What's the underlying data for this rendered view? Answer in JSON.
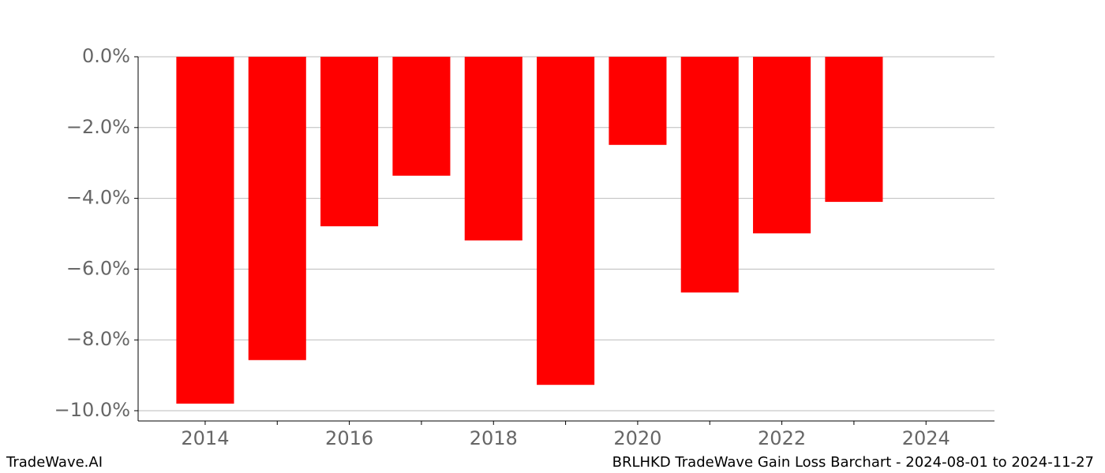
{
  "chart_data": {
    "type": "bar",
    "title": "BRLHKD TradeWave Gain Loss Barchart - 2024-08-01 to 2024-11-27",
    "source": "TradeWave.AI",
    "x": [
      2014,
      2015,
      2016,
      2017,
      2018,
      2019,
      2020,
      2021,
      2022,
      2023
    ],
    "values": [
      -9.8,
      -8.57,
      -4.79,
      -3.36,
      -5.19,
      -9.27,
      -2.49,
      -6.66,
      -4.99,
      -4.1
    ],
    "color": "#ff0000",
    "bar_width": 0.8,
    "xlim": [
      2013.07,
      2024.95
    ],
    "xticks": [
      2014,
      2016,
      2018,
      2020,
      2022,
      2024
    ],
    "xminorticks": [
      2015,
      2017,
      2019,
      2021,
      2023
    ],
    "ylim": [
      -10.29,
      0
    ],
    "yticks": [
      {
        "value": 0,
        "label": "0.0%"
      },
      {
        "value": -2,
        "label": "−2.0%"
      },
      {
        "value": -4,
        "label": "−4.0%"
      },
      {
        "value": -6,
        "label": "−6.0%"
      },
      {
        "value": -8,
        "label": "−8.0%"
      },
      {
        "value": -10,
        "label": "−10.0%"
      }
    ],
    "grid": true
  }
}
